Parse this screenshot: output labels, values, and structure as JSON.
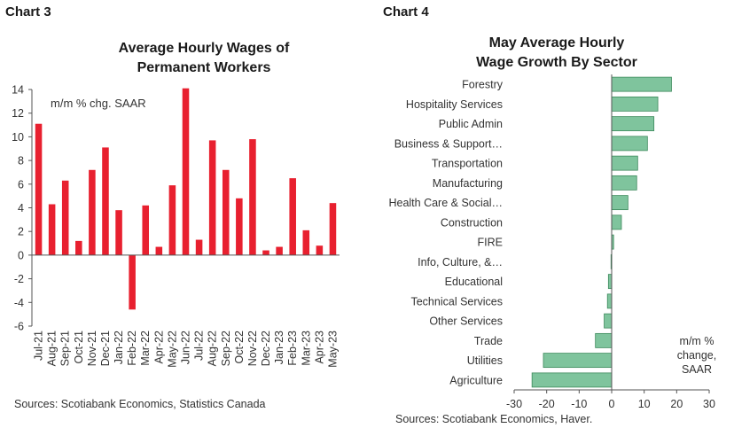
{
  "chart3": {
    "label": "Chart 3",
    "title_line1": "Average Hourly Wages of",
    "title_line2": "Permanent Workers",
    "annotation": "m/m % chg. SAAR",
    "source": "Sources: Scotiabank Economics, Statistics Canada"
  },
  "chart4": {
    "label": "Chart 4",
    "title_line1": "May Average Hourly",
    "title_line2": "Wage Growth By Sector",
    "annotation_line1": "m/m %",
    "annotation_line2": "change,",
    "annotation_line3": "SAAR",
    "source": "Sources: Scotiabank Economics, Haver."
  },
  "chart_data": [
    {
      "type": "bar",
      "title": "Average Hourly Wages of Permanent Workers",
      "ylabel": "",
      "xlabel": "",
      "annotation": "m/m % chg. SAAR",
      "ylim": [
        -6,
        14
      ],
      "yticks": [
        -6,
        -4,
        -2,
        0,
        2,
        4,
        6,
        8,
        10,
        12,
        14
      ],
      "color": "#e8202f",
      "categories": [
        "Jul-21",
        "Aug-21",
        "Sep-21",
        "Oct-21",
        "Nov-21",
        "Dec-21",
        "Jan-22",
        "Feb-22",
        "Mar-22",
        "Apr-22",
        "May-22",
        "Jun-22",
        "Jul-22",
        "Aug-22",
        "Sep-22",
        "Oct-22",
        "Nov-22",
        "Dec-22",
        "Jan-23",
        "Feb-23",
        "Mar-23",
        "Apr-23",
        "May-23"
      ],
      "values": [
        11.1,
        4.3,
        6.3,
        1.2,
        7.2,
        9.1,
        3.8,
        -4.6,
        4.2,
        0.7,
        5.9,
        14.1,
        1.3,
        9.7,
        7.2,
        4.8,
        9.8,
        0.4,
        0.7,
        6.5,
        2.1,
        0.8,
        4.4
      ],
      "grid": false
    },
    {
      "type": "bar",
      "orientation": "horizontal",
      "title": "May Average Hourly Wage Growth By Sector",
      "annotation": "m/m % change, SAAR",
      "xlim": [
        -30,
        30
      ],
      "xticks": [
        -30,
        -20,
        -10,
        0,
        10,
        20,
        30
      ],
      "color": "#7fc49d",
      "border_color": "#3d8a5c",
      "categories": [
        "Forestry",
        "Hospitality Services",
        "Public Admin",
        "Business & Support…",
        "Transportation",
        "Manufacturing",
        "Health Care & Social…",
        "Construction",
        "FIRE",
        "Info, Culture, &…",
        "Educational",
        "Technical Services",
        "Other Services",
        "Trade",
        "Utilities",
        "Agriculture"
      ],
      "values": [
        18.4,
        14.2,
        13.0,
        11.0,
        8.0,
        7.7,
        5.0,
        3.0,
        0.6,
        -0.2,
        -1.0,
        -1.3,
        -2.3,
        -5.0,
        -21.0,
        -24.5
      ],
      "grid": false
    }
  ]
}
